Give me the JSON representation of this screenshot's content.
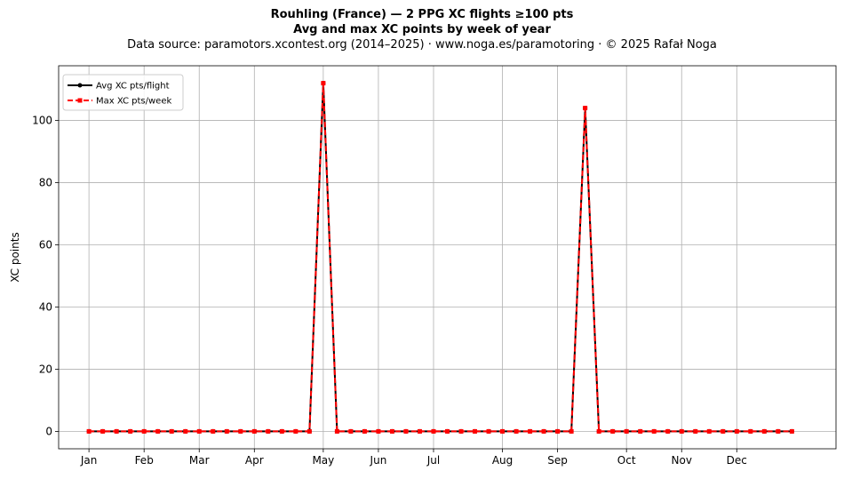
{
  "header": {
    "title": "Rouhling (France)  —  2 PPG XC flights ≥100 pts",
    "subtitle": "Avg and max XC points by week of year",
    "source": "Data source: paramotors.xcontest.org (2014–2025)  ·  www.noga.es/paramotoring  ·  © 2025 Rafał Noga"
  },
  "chart_data": {
    "type": "line",
    "title": "Rouhling (France)  —  2 PPG XC flights ≥100 pts",
    "subtitle": "Avg and max XC points by week of year",
    "xlabel": "",
    "ylabel": "XC points",
    "x": [
      1,
      2,
      3,
      4,
      5,
      6,
      7,
      8,
      9,
      10,
      11,
      12,
      13,
      14,
      15,
      16,
      17,
      18,
      19,
      20,
      21,
      22,
      23,
      24,
      25,
      26,
      27,
      28,
      29,
      30,
      31,
      32,
      33,
      34,
      35,
      36,
      37,
      38,
      39,
      40,
      41,
      42,
      43,
      44,
      45,
      46,
      47,
      48,
      49,
      50,
      51,
      52
    ],
    "x_ticks": [
      {
        "week": 1,
        "label": "Jan"
      },
      {
        "week": 5,
        "label": "Feb"
      },
      {
        "week": 9,
        "label": "Mar"
      },
      {
        "week": 13,
        "label": "Apr"
      },
      {
        "week": 18,
        "label": "May"
      },
      {
        "week": 22,
        "label": "Jun"
      },
      {
        "week": 26,
        "label": "Jul"
      },
      {
        "week": 31,
        "label": "Aug"
      },
      {
        "week": 35,
        "label": "Sep"
      },
      {
        "week": 40,
        "label": "Oct"
      },
      {
        "week": 44,
        "label": "Nov"
      },
      {
        "week": 48,
        "label": "Dec"
      }
    ],
    "xlim": [
      -1.2,
      55.2
    ],
    "ylim": [
      -5.6,
      117.6
    ],
    "y_ticks": [
      0,
      20,
      40,
      60,
      80,
      100
    ],
    "grid": true,
    "legend_position": "upper-left",
    "series": [
      {
        "name": "Avg XC pts/flight",
        "color": "#000000",
        "style": "solid",
        "marker": "circle",
        "values": [
          0,
          0,
          0,
          0,
          0,
          0,
          0,
          0,
          0,
          0,
          0,
          0,
          0,
          0,
          0,
          0,
          0,
          112,
          0,
          0,
          0,
          0,
          0,
          0,
          0,
          0,
          0,
          0,
          0,
          0,
          0,
          0,
          0,
          0,
          0,
          0,
          104,
          0,
          0,
          0,
          0,
          0,
          0,
          0,
          0,
          0,
          0,
          0,
          0,
          0,
          0,
          0
        ]
      },
      {
        "name": "Max XC pts/week",
        "color": "#ff0000",
        "style": "dashed",
        "marker": "square",
        "values": [
          0,
          0,
          0,
          0,
          0,
          0,
          0,
          0,
          0,
          0,
          0,
          0,
          0,
          0,
          0,
          0,
          0,
          112,
          0,
          0,
          0,
          0,
          0,
          0,
          0,
          0,
          0,
          0,
          0,
          0,
          0,
          0,
          0,
          0,
          0,
          0,
          104,
          0,
          0,
          0,
          0,
          0,
          0,
          0,
          0,
          0,
          0,
          0,
          0,
          0,
          0,
          0
        ]
      }
    ]
  }
}
